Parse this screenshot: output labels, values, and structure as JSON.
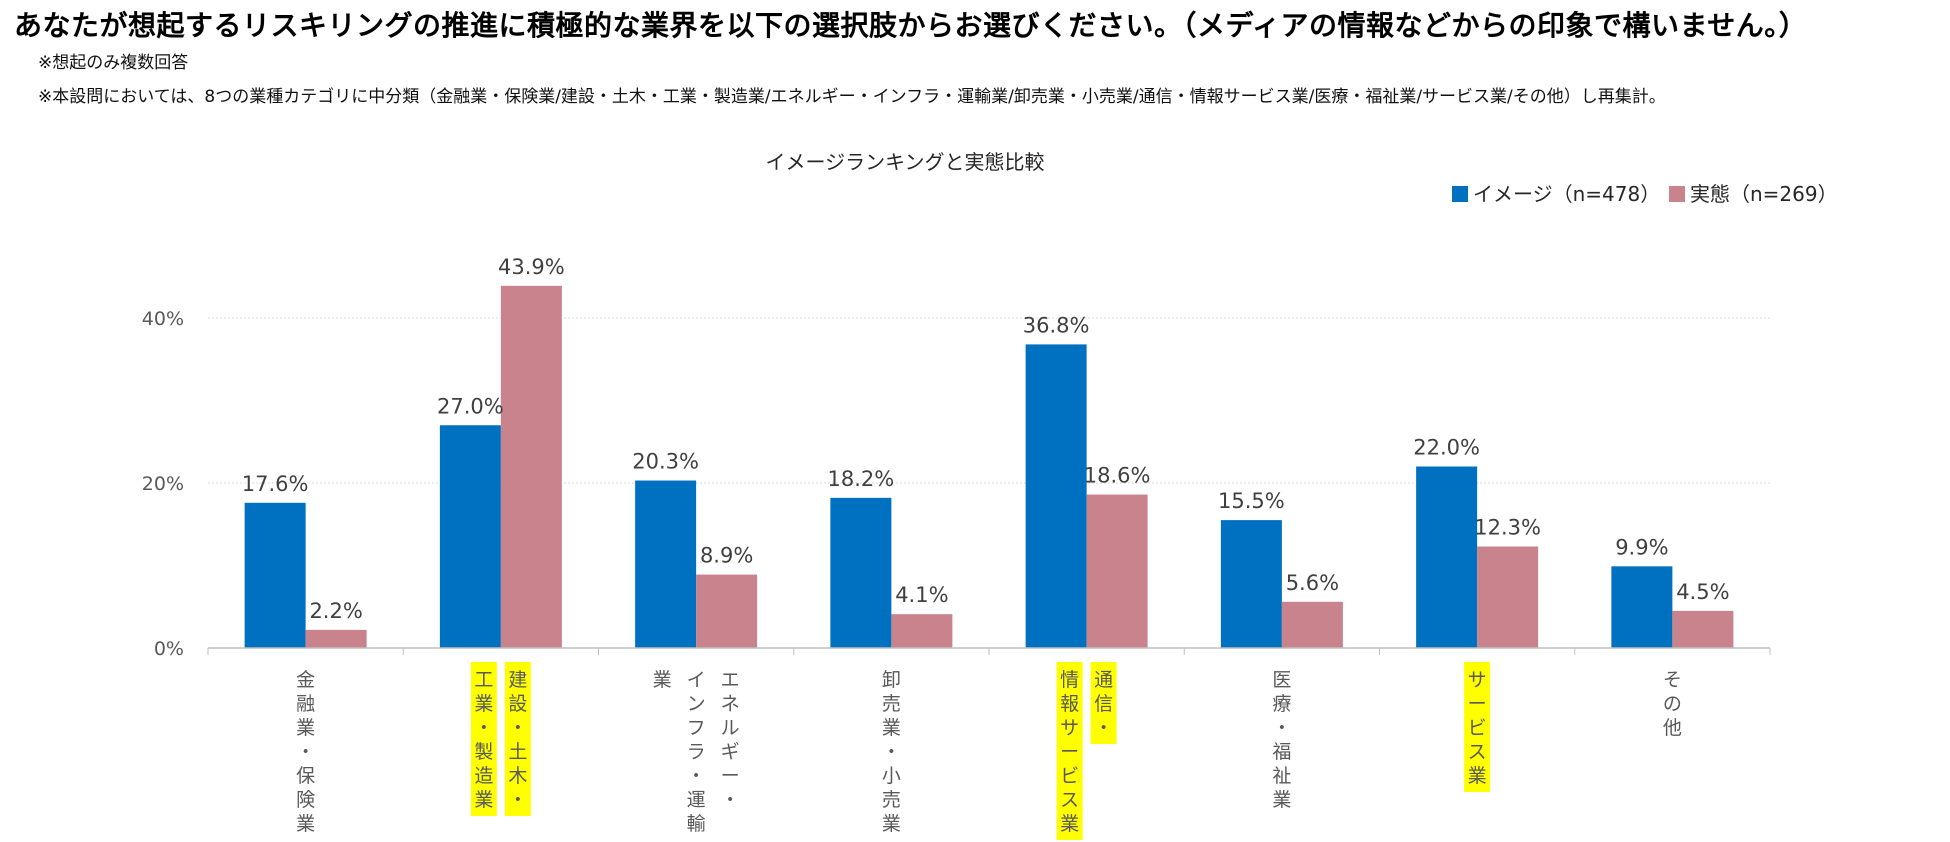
{
  "header": {
    "title": "あなたが想起するリスキリングの推進に積極的な業界を以下の選択肢からお選びください。（メディアの情報などからの印象で構いません。）",
    "note1": "※想起のみ複数回答",
    "note2": "※本設問においては、8つの業種カテゴリに中分類（金融業・保険業/建設・土木・工業・製造業/エネルギー・インフラ・運輸業/卸売業・小売業/通信・情報サービス業/医療・福祉業/サービス業/その他）し再集計。"
  },
  "colors": {
    "image": "#0070C0",
    "actual": "#C9838C",
    "highlight": "#FFFF00",
    "axis_text": "#595959",
    "label_text": "#404040"
  },
  "chart_data": {
    "type": "bar",
    "title": "イメージランキングと実態比較",
    "xlabel": "",
    "ylabel": "",
    "ylim": [
      0,
      50
    ],
    "yticks": [
      {
        "value": 0,
        "label": "0%"
      },
      {
        "value": 20,
        "label": "20%"
      },
      {
        "value": 40,
        "label": "40%"
      }
    ],
    "grid": true,
    "legend_position": "top-right",
    "categories": [
      {
        "lines": [
          "金融業・保険業"
        ],
        "highlight": []
      },
      {
        "lines": [
          "建設・土木・",
          "工業・製造業"
        ],
        "highlight": [
          0,
          1
        ]
      },
      {
        "lines": [
          "エネルギー・",
          "インフラ・運輸",
          "業"
        ],
        "highlight": []
      },
      {
        "lines": [
          "卸売業・小売業"
        ],
        "highlight": []
      },
      {
        "lines": [
          "通信・",
          "情報サービス業"
        ],
        "highlight": [
          0,
          1
        ]
      },
      {
        "lines": [
          "医療・福祉業"
        ],
        "highlight": []
      },
      {
        "lines": [
          "サービス業"
        ],
        "highlight": [
          0
        ]
      },
      {
        "lines": [
          "その他"
        ],
        "highlight": []
      }
    ],
    "series": [
      {
        "name": "イメージ",
        "legend_label": "イメージ（n=478）",
        "values": [
          17.6,
          27.0,
          20.3,
          18.2,
          36.8,
          15.5,
          22.0,
          9.9
        ],
        "labels": [
          "17.6%",
          "27.0%",
          "20.3%",
          "18.2%",
          "36.8%",
          "15.5%",
          "22.0%",
          "9.9%"
        ]
      },
      {
        "name": "実態",
        "legend_label": "実態（n=269）",
        "values": [
          2.2,
          43.9,
          8.9,
          4.1,
          18.6,
          5.6,
          12.3,
          4.5
        ],
        "labels": [
          "2.2%",
          "43.9%",
          "8.9%",
          "4.1%",
          "18.6%",
          "5.6%",
          "12.3%",
          "4.5%"
        ]
      }
    ]
  }
}
